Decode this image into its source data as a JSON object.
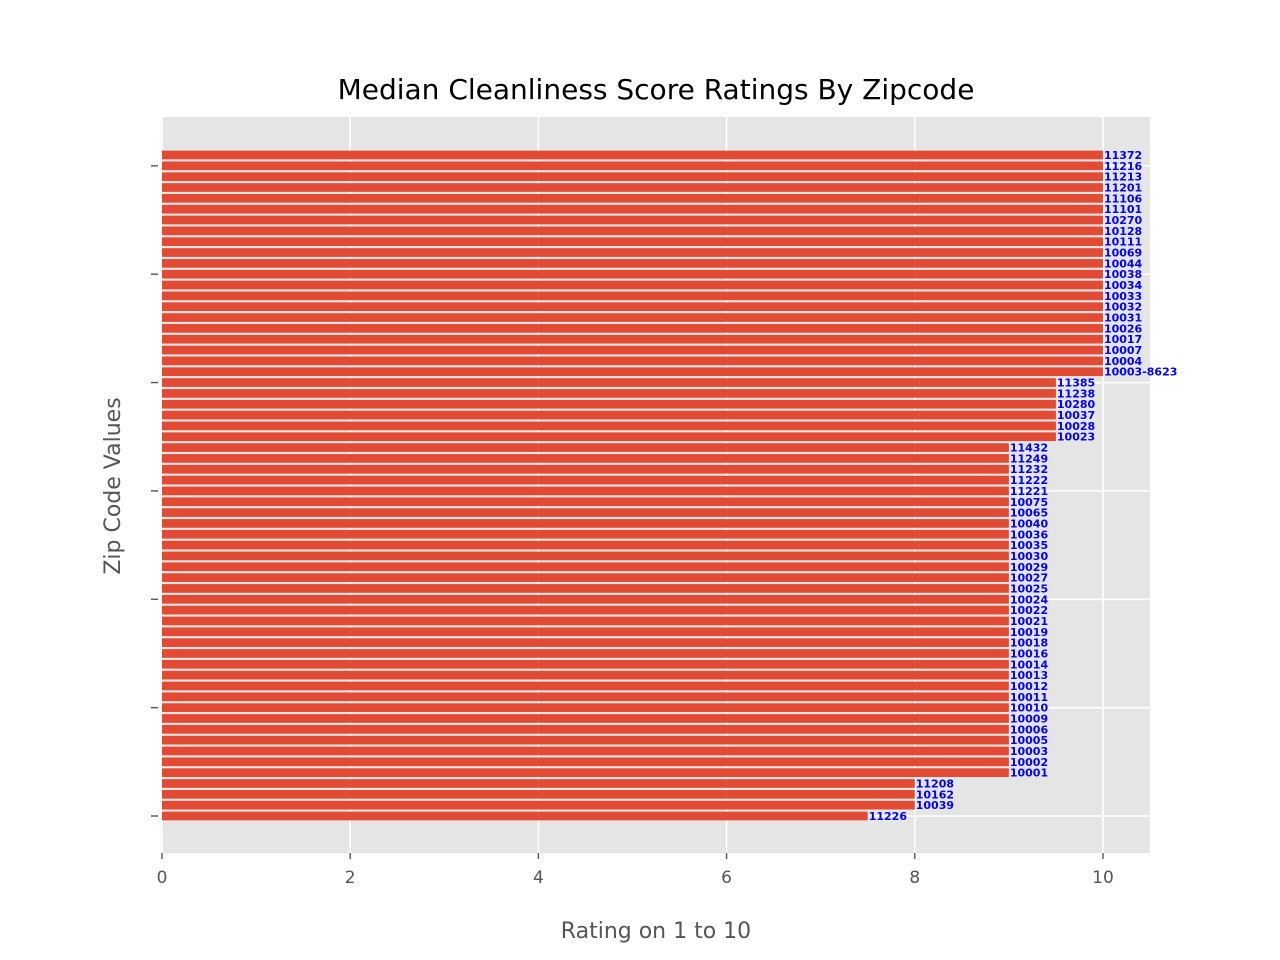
{
  "chart_data": {
    "type": "bar",
    "orientation": "horizontal",
    "title": "Median Cleanliness Score Ratings By Zipcode",
    "xlabel": "Rating on 1 to 10",
    "ylabel": "Zip Code Values",
    "xlim": [
      0,
      10.5
    ],
    "xticks": [
      0,
      2,
      4,
      6,
      8,
      10
    ],
    "grid": true,
    "colors": {
      "bar": "#E24A33",
      "label": "#0000FF",
      "plot_background": "#E5E5E5",
      "grid": "#FFFFFF",
      "tick": "#555555"
    },
    "bars": [
      {
        "label": "11372",
        "value": 10
      },
      {
        "label": "11216",
        "value": 10
      },
      {
        "label": "11213",
        "value": 10
      },
      {
        "label": "11201",
        "value": 10
      },
      {
        "label": "11106",
        "value": 10
      },
      {
        "label": "11101",
        "value": 10
      },
      {
        "label": "10270",
        "value": 10
      },
      {
        "label": "10128",
        "value": 10
      },
      {
        "label": "10111",
        "value": 10
      },
      {
        "label": "10069",
        "value": 10
      },
      {
        "label": "10044",
        "value": 10
      },
      {
        "label": "10038",
        "value": 10
      },
      {
        "label": "10034",
        "value": 10
      },
      {
        "label": "10033",
        "value": 10
      },
      {
        "label": "10032",
        "value": 10
      },
      {
        "label": "10031",
        "value": 10
      },
      {
        "label": "10026",
        "value": 10
      },
      {
        "label": "10017",
        "value": 10
      },
      {
        "label": "10007",
        "value": 10
      },
      {
        "label": "10004",
        "value": 10
      },
      {
        "label": "10003-8623",
        "value": 10
      },
      {
        "label": "11385",
        "value": 9.5
      },
      {
        "label": "11238",
        "value": 9.5
      },
      {
        "label": "10280",
        "value": 9.5
      },
      {
        "label": "10037",
        "value": 9.5
      },
      {
        "label": "10028",
        "value": 9.5
      },
      {
        "label": "10023",
        "value": 9.5
      },
      {
        "label": "11432",
        "value": 9
      },
      {
        "label": "11249",
        "value": 9
      },
      {
        "label": "11232",
        "value": 9
      },
      {
        "label": "11222",
        "value": 9
      },
      {
        "label": "11221",
        "value": 9
      },
      {
        "label": "10075",
        "value": 9
      },
      {
        "label": "10065",
        "value": 9
      },
      {
        "label": "10040",
        "value": 9
      },
      {
        "label": "10036",
        "value": 9
      },
      {
        "label": "10035",
        "value": 9
      },
      {
        "label": "10030",
        "value": 9
      },
      {
        "label": "10029",
        "value": 9
      },
      {
        "label": "10027",
        "value": 9
      },
      {
        "label": "10025",
        "value": 9
      },
      {
        "label": "10024",
        "value": 9
      },
      {
        "label": "10022",
        "value": 9
      },
      {
        "label": "10021",
        "value": 9
      },
      {
        "label": "10019",
        "value": 9
      },
      {
        "label": "10018",
        "value": 9
      },
      {
        "label": "10016",
        "value": 9
      },
      {
        "label": "10014",
        "value": 9
      },
      {
        "label": "10013",
        "value": 9
      },
      {
        "label": "10012",
        "value": 9
      },
      {
        "label": "10011",
        "value": 9
      },
      {
        "label": "10010",
        "value": 9
      },
      {
        "label": "10009",
        "value": 9
      },
      {
        "label": "10006",
        "value": 9
      },
      {
        "label": "10005",
        "value": 9
      },
      {
        "label": "10003",
        "value": 9
      },
      {
        "label": "10002",
        "value": 9
      },
      {
        "label": "10001",
        "value": 9
      },
      {
        "label": "11208",
        "value": 8
      },
      {
        "label": "10162",
        "value": 8
      },
      {
        "label": "10039",
        "value": 8
      },
      {
        "label": "11226",
        "value": 7.5
      }
    ]
  }
}
